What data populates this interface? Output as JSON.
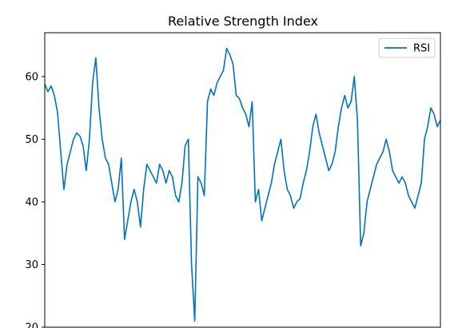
{
  "chart_data": {
    "type": "line",
    "title": "Relative Strength Index",
    "xlabel": "",
    "ylabel": "",
    "ylim": [
      20,
      67
    ],
    "yticks": [
      20,
      30,
      40,
      50,
      60
    ],
    "grid": false,
    "legend": {
      "placement": "top-right"
    },
    "x": [
      0,
      4,
      8,
      12,
      16,
      20,
      24,
      28,
      32,
      36,
      40,
      44,
      48,
      52,
      56,
      60,
      64,
      68,
      72,
      76,
      80,
      84,
      88,
      92,
      96,
      100,
      104,
      108,
      112,
      116,
      120,
      124,
      128,
      132,
      136,
      140,
      144,
      148,
      152,
      156,
      160,
      164,
      168,
      172,
      176,
      180,
      184,
      188,
      192,
      196,
      200,
      204,
      208,
      212,
      216,
      220,
      224,
      228,
      232,
      236,
      240,
      244,
      248,
      252,
      256,
      260,
      264,
      268,
      272,
      276,
      280,
      284,
      288,
      292,
      296,
      300,
      304,
      308,
      312,
      316,
      320,
      324,
      328,
      332,
      336,
      340,
      344,
      348,
      352,
      356,
      360,
      364,
      368,
      372,
      376,
      380,
      384,
      388,
      392,
      396,
      400,
      404,
      408,
      412,
      416,
      420,
      424,
      428,
      432,
      436,
      440,
      444,
      448,
      452,
      456,
      460,
      464,
      468,
      472,
      476,
      480,
      484,
      488,
      492,
      496
    ],
    "series": [
      {
        "name": "RSI",
        "color": "#0072bd",
        "values": [
          58.8,
          57.6,
          58.5,
          57.0,
          54.3,
          48.0,
          42.0,
          46.0,
          48.0,
          50.0,
          51.0,
          50.5,
          49.0,
          45.0,
          50.0,
          59.0,
          63.0,
          55.0,
          50.0,
          47.0,
          46.0,
          43.0,
          40.0,
          42.0,
          47.0,
          34.0,
          37.0,
          40.0,
          42.0,
          40.0,
          36.0,
          42.0,
          46.0,
          45.0,
          44.0,
          43.0,
          46.0,
          45.0,
          43.0,
          45.0,
          44.0,
          41.0,
          40.0,
          43.0,
          49.0,
          50.0,
          30.0,
          21.0,
          44.0,
          43.0,
          41.0,
          56.0,
          58.0,
          57.0,
          59.0,
          60.0,
          61.0,
          64.5,
          63.5,
          62.0,
          57.0,
          56.5,
          55.0,
          54.0,
          52.0,
          56.0,
          40.0,
          42.0,
          37.0,
          39.0,
          41.0,
          43.0,
          46.0,
          48.0,
          50.0,
          45.0,
          42.0,
          41.0,
          39.0,
          40.0,
          40.5,
          43.0,
          45.0,
          48.0,
          52.0,
          54.0,
          51.0,
          49.0,
          47.0,
          45.0,
          46.0,
          48.0,
          52.0,
          55.0,
          57.0,
          55.0,
          56.0,
          60.0,
          53.0,
          33.0,
          35.0,
          40.0,
          42.0,
          44.0,
          46.0,
          47.0,
          48.0,
          50.0,
          48.0,
          45.0,
          44.0,
          43.0,
          44.0,
          43.0,
          41.0,
          40.0,
          39.0,
          41.0,
          43.0,
          50.0,
          52.0,
          55.0,
          54.0,
          52.0,
          53.0
        ]
      }
    ]
  }
}
